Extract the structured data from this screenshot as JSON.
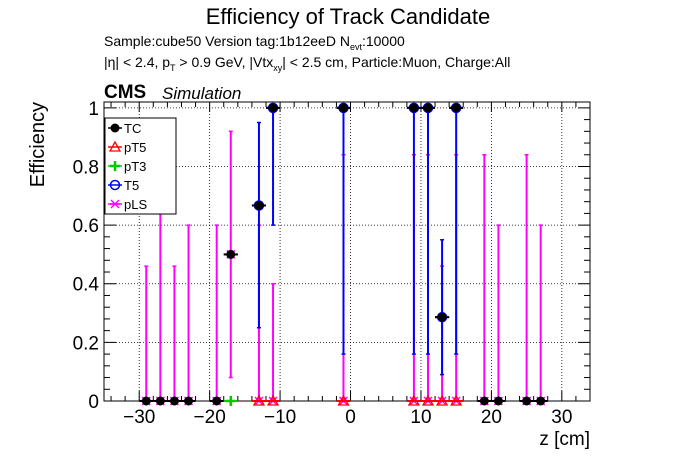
{
  "header": {
    "title": "Efficiency of Track Candidate",
    "sample_line": "Sample:cube50   Version tag:1b12eeD  N",
    "sample_sub": "evt",
    "sample_tail": ":10000",
    "cuts_a": "|η| < 2.4, p",
    "cuts_sub_a": "T",
    "cuts_b": " > 0.9 GeV, |Vtx",
    "cuts_sub_b": "xy",
    "cuts_c": "| < 2.5 cm, Particle:Muon, Charge:All",
    "cms": "CMS",
    "simulation": "Simulation"
  },
  "chart_data": {
    "type": "scatter",
    "xlabel": "z [cm]",
    "ylabel": "Efficiency",
    "xlim": [
      -35,
      34
    ],
    "ylim": [
      0,
      1.02
    ],
    "x_ticks": [
      -30,
      -20,
      -10,
      0,
      10,
      20,
      30
    ],
    "x_tick_labels": [
      "−30",
      "−20",
      "−10",
      "0",
      "10",
      "20",
      "30"
    ],
    "y_ticks": [
      0,
      0.2,
      0.4,
      0.6,
      0.8,
      1
    ],
    "y_tick_labels": [
      "0",
      "0.2",
      "0.4",
      "0.6",
      "0.8",
      "1"
    ],
    "grid": true,
    "legend_position": "top-left",
    "legend": [
      {
        "name": "TC",
        "color": "#000000",
        "marker": "filled-circle"
      },
      {
        "name": "pT5",
        "color": "#ff0000",
        "marker": "triangle"
      },
      {
        "name": "pT3",
        "color": "#00cc00",
        "marker": "plus"
      },
      {
        "name": "T5",
        "color": "#0000ff",
        "marker": "open-circle"
      },
      {
        "name": "pLS",
        "color": "#ff00ff",
        "marker": "star"
      }
    ],
    "series": [
      {
        "name": "pLS",
        "color": "#ff00ff",
        "points": [
          {
            "x": -29,
            "y": 0,
            "lo": 0,
            "hi": 0.46
          },
          {
            "x": -27,
            "y": 0,
            "lo": 0,
            "hi": 0.84
          },
          {
            "x": -25,
            "y": 0,
            "lo": 0,
            "hi": 0.46
          },
          {
            "x": -23,
            "y": 0,
            "lo": 0,
            "hi": 0.6
          },
          {
            "x": -19,
            "y": 0,
            "lo": 0,
            "hi": 0.6
          },
          {
            "x": -17,
            "y": 0.5,
            "lo": 0.08,
            "hi": 0.92
          },
          {
            "x": -13,
            "y": 0,
            "lo": 0,
            "hi": 0.6
          },
          {
            "x": -11,
            "y": 0,
            "lo": 0,
            "hi": 0.4
          },
          {
            "x": -1,
            "y": 0,
            "lo": 0,
            "hi": 0.84
          },
          {
            "x": 9,
            "y": 0,
            "lo": 0,
            "hi": 0.84
          },
          {
            "x": 11,
            "y": 0,
            "lo": 0,
            "hi": 0.84
          },
          {
            "x": 13,
            "y": 0,
            "lo": 0,
            "hi": 0.46
          },
          {
            "x": 15,
            "y": 0,
            "lo": 0,
            "hi": 0.84
          },
          {
            "x": 19,
            "y": 0,
            "lo": 0,
            "hi": 0.84
          },
          {
            "x": 21,
            "y": 0,
            "lo": 0,
            "hi": 0.6
          },
          {
            "x": 25,
            "y": 0,
            "lo": 0,
            "hi": 0.84
          },
          {
            "x": 27,
            "y": 0,
            "lo": 0,
            "hi": 0.6
          }
        ]
      },
      {
        "name": "T5",
        "color": "#0000ff",
        "points": [
          {
            "x": -13,
            "y": 0.667,
            "lo": 0.25,
            "hi": 0.95
          },
          {
            "x": -11,
            "y": 1,
            "lo": 0.6,
            "hi": 1
          },
          {
            "x": -1,
            "y": 1,
            "lo": 0.16,
            "hi": 1
          },
          {
            "x": 9,
            "y": 1,
            "lo": 0.16,
            "hi": 1
          },
          {
            "x": 11,
            "y": 1,
            "lo": 0.16,
            "hi": 1
          },
          {
            "x": 13,
            "y": 0.286,
            "lo": 0.09,
            "hi": 0.55
          },
          {
            "x": 15,
            "y": 1,
            "lo": 0.16,
            "hi": 1
          }
        ]
      },
      {
        "name": "TC",
        "color": "#000000",
        "points": [
          {
            "x": -29,
            "y": 0
          },
          {
            "x": -27,
            "y": 0
          },
          {
            "x": -25,
            "y": 0
          },
          {
            "x": -23,
            "y": 0
          },
          {
            "x": -19,
            "y": 0
          },
          {
            "x": -17,
            "y": 0.5
          },
          {
            "x": -13,
            "y": 0.667
          },
          {
            "x": -11,
            "y": 1
          },
          {
            "x": -1,
            "y": 1
          },
          {
            "x": 9,
            "y": 1
          },
          {
            "x": 11,
            "y": 1
          },
          {
            "x": 13,
            "y": 0.286
          },
          {
            "x": 15,
            "y": 1
          },
          {
            "x": 19,
            "y": 0
          },
          {
            "x": 21,
            "y": 0
          },
          {
            "x": 25,
            "y": 0
          },
          {
            "x": 27,
            "y": 0
          }
        ]
      },
      {
        "name": "pT5",
        "color": "#ff0000",
        "points": [
          {
            "x": -13,
            "y": 0
          },
          {
            "x": -11,
            "y": 0
          },
          {
            "x": -1,
            "y": 0
          },
          {
            "x": 9,
            "y": 0
          },
          {
            "x": 11,
            "y": 0
          },
          {
            "x": 13,
            "y": 0
          },
          {
            "x": 15,
            "y": 0
          }
        ]
      },
      {
        "name": "pT3",
        "color": "#00cc00",
        "points": [
          {
            "x": -17,
            "y": 0
          }
        ]
      }
    ]
  }
}
